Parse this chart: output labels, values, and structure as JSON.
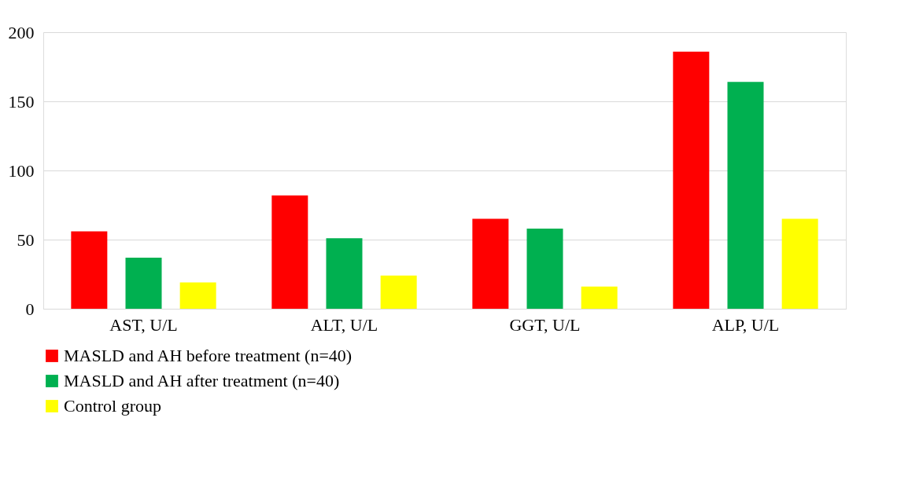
{
  "chart_data": {
    "type": "bar",
    "categories": [
      "AST, U/L",
      "ALT, U/L",
      "GGT, U/L",
      "ALP, U/L"
    ],
    "series": [
      {
        "name": "MASLD and AH before treatment (n=40)",
        "color": "#ff0000",
        "values": [
          56,
          82,
          65,
          186
        ]
      },
      {
        "name": "MASLD and AH after treatment (n=40)",
        "color": "#00b050",
        "values": [
          37,
          51,
          58,
          164
        ]
      },
      {
        "name": "Control group",
        "color": "#ffff00",
        "values": [
          19,
          24,
          16,
          65
        ]
      }
    ],
    "ylim": [
      0,
      200
    ],
    "yticks": [
      0,
      50,
      100,
      150,
      200
    ],
    "grid": "y",
    "legend": "bottom"
  }
}
